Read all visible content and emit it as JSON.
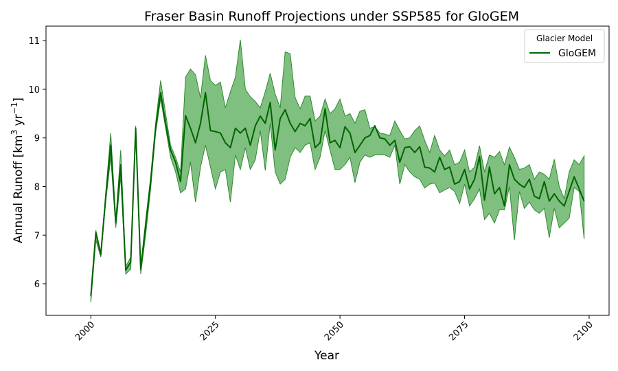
{
  "chart_data": {
    "type": "area",
    "title": "Fraser Basin Runoff Projections under SSP585 for GloGEM",
    "xlabel": "Year",
    "ylabel": "Annual Runoff [km",
    "ylabel_unit_sup1": "3",
    "ylabel_unit_mid": " yr",
    "ylabel_unit_sup2": "−1",
    "ylabel_end": "]",
    "xlim": [
      1991,
      2104
    ],
    "ylim": [
      5.35,
      11.3
    ],
    "xticks": [
      2000,
      2025,
      2050,
      2075,
      2100
    ],
    "yticks": [
      6,
      7,
      8,
      9,
      10,
      11
    ],
    "grid": false,
    "legend_placement": "top-right",
    "legend_title": "Glacier Model",
    "colors": {
      "line": "#006400",
      "band": "#7fbf7f",
      "band_edge": "#2e8b2e"
    },
    "x": [
      2000,
      2001,
      2002,
      2003,
      2004,
      2005,
      2006,
      2007,
      2008,
      2009,
      2010,
      2011,
      2012,
      2013,
      2014,
      2015,
      2016,
      2017,
      2018,
      2019,
      2020,
      2021,
      2022,
      2023,
      2024,
      2025,
      2026,
      2027,
      2028,
      2029,
      2030,
      2031,
      2032,
      2033,
      2034,
      2035,
      2036,
      2037,
      2038,
      2039,
      2040,
      2041,
      2042,
      2043,
      2044,
      2045,
      2046,
      2047,
      2048,
      2049,
      2050,
      2051,
      2052,
      2053,
      2054,
      2055,
      2056,
      2057,
      2058,
      2059,
      2060,
      2061,
      2062,
      2063,
      2064,
      2065,
      2066,
      2067,
      2068,
      2069,
      2070,
      2071,
      2072,
      2073,
      2074,
      2075,
      2076,
      2077,
      2078,
      2079,
      2080,
      2081,
      2082,
      2083,
      2084,
      2085,
      2086,
      2087,
      2088,
      2089,
      2090,
      2091,
      2092,
      2093,
      2094,
      2095,
      2096,
      2097,
      2098,
      2099
    ],
    "series": [
      {
        "name": "GloGEM",
        "values": [
          5.75,
          7.05,
          6.6,
          7.8,
          8.85,
          7.25,
          8.45,
          6.28,
          6.45,
          9.2,
          6.3,
          7.2,
          8.1,
          9.2,
          9.93,
          9.3,
          8.75,
          8.5,
          8.1,
          9.46,
          9.2,
          8.9,
          9.3,
          9.93,
          9.15,
          9.13,
          9.1,
          8.9,
          8.8,
          9.2,
          9.1,
          9.2,
          8.85,
          9.25,
          9.45,
          9.3,
          9.73,
          8.75,
          9.4,
          9.58,
          9.3,
          9.13,
          9.3,
          9.25,
          9.4,
          8.8,
          8.9,
          9.6,
          8.9,
          8.95,
          8.8,
          9.23,
          9.1,
          8.7,
          8.85,
          9.0,
          9.05,
          9.25,
          9.0,
          8.98,
          8.85,
          8.95,
          8.5,
          8.8,
          8.82,
          8.7,
          8.82,
          8.4,
          8.38,
          8.3,
          8.6,
          8.35,
          8.4,
          8.05,
          8.1,
          8.35,
          7.95,
          8.15,
          8.62,
          7.72,
          8.4,
          7.85,
          7.98,
          7.6,
          8.45,
          8.15,
          8.05,
          7.98,
          8.15,
          7.8,
          7.75,
          8.1,
          7.7,
          7.85,
          7.7,
          7.6,
          7.9,
          8.2,
          7.95,
          7.7
        ],
        "upper": [
          5.8,
          7.1,
          6.65,
          7.9,
          9.1,
          7.3,
          8.75,
          6.35,
          6.55,
          9.25,
          6.35,
          7.3,
          8.2,
          9.3,
          10.18,
          9.5,
          8.85,
          8.6,
          8.3,
          10.25,
          10.42,
          10.3,
          9.82,
          10.7,
          10.18,
          10.08,
          10.15,
          9.62,
          9.95,
          10.25,
          11.02,
          10.0,
          9.85,
          9.75,
          9.62,
          9.95,
          10.33,
          9.9,
          9.62,
          10.77,
          10.73,
          9.83,
          9.6,
          9.86,
          9.86,
          9.35,
          9.45,
          9.8,
          9.5,
          9.6,
          9.8,
          9.45,
          9.5,
          9.3,
          9.55,
          9.58,
          9.2,
          9.23,
          9.1,
          9.08,
          9.05,
          9.35,
          9.15,
          8.98,
          9.0,
          9.15,
          9.25,
          8.95,
          8.7,
          9.05,
          8.75,
          8.63,
          8.75,
          8.45,
          8.5,
          8.75,
          8.3,
          8.4,
          8.84,
          8.3,
          8.65,
          8.6,
          8.72,
          8.45,
          8.81,
          8.6,
          8.35,
          8.38,
          8.45,
          8.15,
          8.3,
          8.25,
          8.15,
          8.56,
          8.0,
          7.75,
          8.3,
          8.55,
          8.45,
          8.63
        ],
        "lower": [
          5.62,
          6.9,
          6.55,
          7.7,
          8.6,
          7.15,
          8.2,
          6.2,
          6.3,
          9.1,
          6.2,
          7.0,
          7.95,
          9.1,
          9.8,
          9.2,
          8.6,
          8.3,
          7.87,
          7.95,
          8.5,
          7.68,
          8.4,
          8.85,
          8.4,
          7.95,
          8.3,
          8.35,
          7.68,
          8.65,
          8.35,
          8.8,
          8.35,
          8.55,
          9.15,
          8.33,
          9.3,
          8.3,
          8.05,
          8.15,
          8.6,
          8.8,
          8.7,
          8.85,
          8.9,
          8.35,
          8.6,
          9.15,
          8.75,
          8.35,
          8.35,
          8.45,
          8.6,
          8.08,
          8.5,
          8.65,
          8.6,
          8.65,
          8.65,
          8.65,
          8.6,
          8.85,
          8.05,
          8.45,
          8.3,
          8.2,
          8.15,
          7.97,
          8.05,
          8.07,
          7.87,
          7.93,
          7.98,
          7.9,
          7.65,
          8.05,
          7.6,
          7.75,
          7.95,
          7.32,
          7.45,
          7.25,
          7.52,
          7.52,
          8.0,
          6.9,
          7.9,
          7.55,
          7.68,
          7.52,
          7.45,
          7.55,
          6.95,
          7.55,
          7.15,
          7.25,
          7.35,
          7.98,
          7.9,
          6.92
        ]
      }
    ]
  }
}
